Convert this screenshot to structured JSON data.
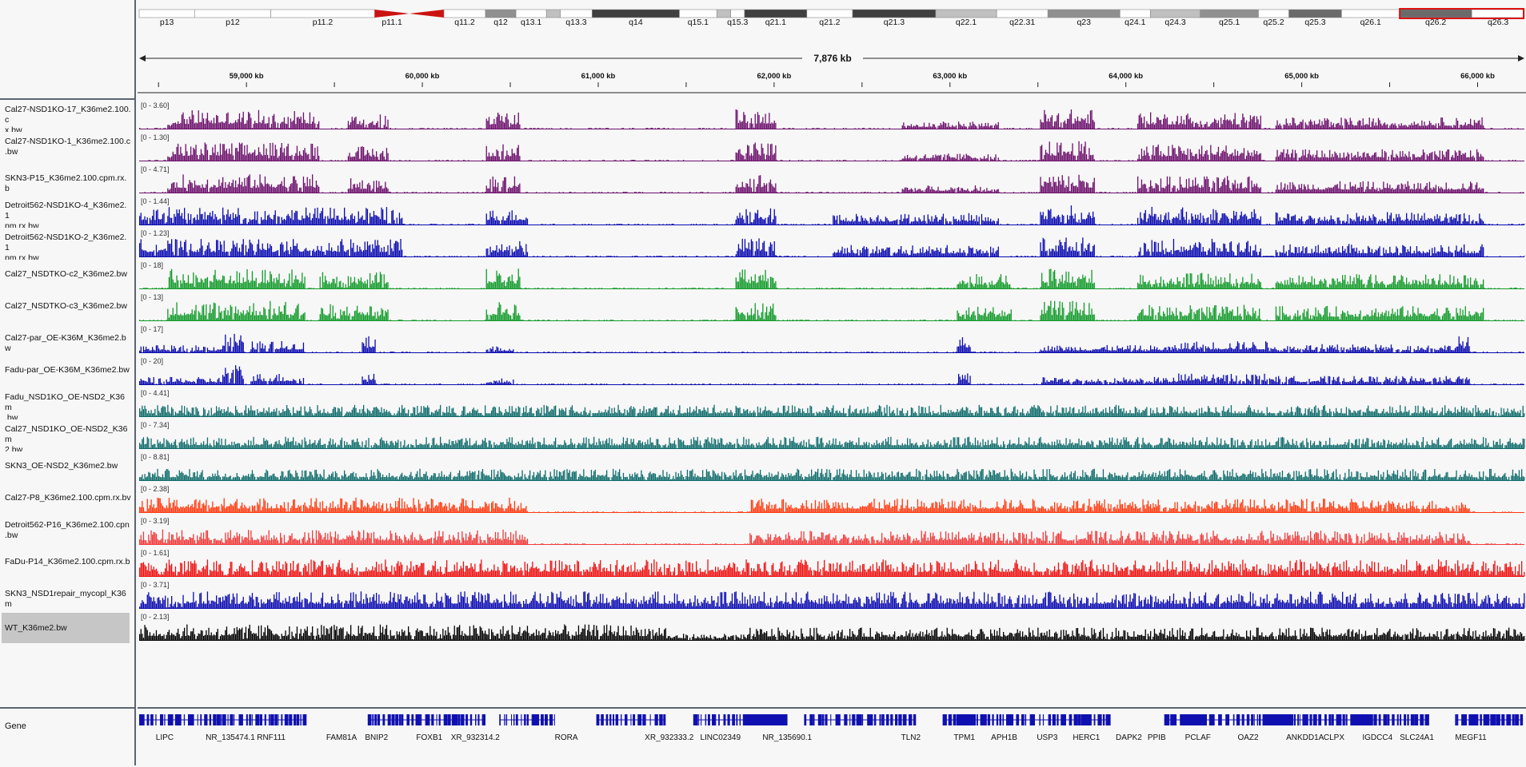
{
  "ideogram": {
    "bands": [
      {
        "label": "p13",
        "start": 0,
        "end": 0.04,
        "stain": "gneg"
      },
      {
        "label": "p12",
        "start": 0.04,
        "end": 0.095,
        "stain": "gneg"
      },
      {
        "label": "p11.2",
        "start": 0.095,
        "end": 0.17,
        "stain": "gneg"
      },
      {
        "label": "p11.1",
        "start": 0.17,
        "end": 0.195,
        "stain": "acen-p"
      },
      {
        "label": "",
        "start": 0.195,
        "end": 0.22,
        "stain": "acen-q"
      },
      {
        "label": "q11.2",
        "start": 0.22,
        "end": 0.25,
        "stain": "gneg"
      },
      {
        "label": "q12",
        "start": 0.25,
        "end": 0.272,
        "stain": "gpos50"
      },
      {
        "label": "q13.1",
        "start": 0.272,
        "end": 0.294,
        "stain": "gneg"
      },
      {
        "label": "",
        "start": 0.294,
        "end": 0.304,
        "stain": "gpos25"
      },
      {
        "label": "q13.3",
        "start": 0.304,
        "end": 0.327,
        "stain": "gneg"
      },
      {
        "label": "q14",
        "start": 0.327,
        "end": 0.39,
        "stain": "gpos100"
      },
      {
        "label": "q15.1",
        "start": 0.39,
        "end": 0.417,
        "stain": "gneg"
      },
      {
        "label": "",
        "start": 0.417,
        "end": 0.427,
        "stain": "gpos25"
      },
      {
        "label": "q15.3",
        "start": 0.427,
        "end": 0.437,
        "stain": "gneg"
      },
      {
        "label": "q21.1",
        "start": 0.437,
        "end": 0.482,
        "stain": "gpos100"
      },
      {
        "label": "q21.2",
        "start": 0.482,
        "end": 0.515,
        "stain": "gneg"
      },
      {
        "label": "q21.3",
        "start": 0.515,
        "end": 0.575,
        "stain": "gpos100"
      },
      {
        "label": "q22.1",
        "start": 0.575,
        "end": 0.619,
        "stain": "gpos25"
      },
      {
        "label": "q22.31",
        "start": 0.619,
        "end": 0.656,
        "stain": "gneg"
      },
      {
        "label": "q23",
        "start": 0.656,
        "end": 0.708,
        "stain": "gpos50"
      },
      {
        "label": "q24.1",
        "start": 0.708,
        "end": 0.73,
        "stain": "gneg"
      },
      {
        "label": "q24.3",
        "start": 0.73,
        "end": 0.766,
        "stain": "gpos25"
      },
      {
        "label": "q25.1",
        "start": 0.766,
        "end": 0.808,
        "stain": "gpos50"
      },
      {
        "label": "q25.2",
        "start": 0.808,
        "end": 0.83,
        "stain": "gneg"
      },
      {
        "label": "q25.3",
        "start": 0.83,
        "end": 0.868,
        "stain": "gpos75"
      },
      {
        "label": "q26.1",
        "start": 0.868,
        "end": 0.91,
        "stain": "gneg"
      },
      {
        "label": "q26.2",
        "start": 0.91,
        "end": 0.962,
        "stain": "gpos75"
      },
      {
        "label": "q26.3",
        "start": 0.962,
        "end": 1.0,
        "stain": "gneg"
      }
    ],
    "stain_colors": {
      "gneg": "#ffffff",
      "gpos25": "#c0c0c0",
      "gpos50": "#909090",
      "gpos75": "#6a6a6a",
      "gpos100": "#404040",
      "acen-p": "#cc1111",
      "acen-q": "#cc1111"
    },
    "highlight": {
      "start": 0.91,
      "end": 1.0,
      "color": "#dd1111"
    }
  },
  "ruler": {
    "span_label": "7,876 kb",
    "ticks": [
      "59,000 kb",
      "60,000 kb",
      "61,000 kb",
      "62,000 kb",
      "63,000 kb",
      "64,000 kb",
      "65,000 kb",
      "66,000 kb"
    ],
    "tick_values": [
      59000,
      60000,
      61000,
      62000,
      63000,
      64000,
      65000,
      66000
    ],
    "view_start_kb": 58390,
    "view_end_kb": 66266
  },
  "tracks": [
    {
      "name": "Cal27-NSD1KO-17_K36me2.100.cpm.rx.bw",
      "name_lines": [
        "Cal27-NSD1KO-17_K36me2.100.c",
        "x.bw"
      ],
      "range": "[0 - 3.60]",
      "color": "#6b0f6b",
      "profile": "nsd1ko"
    },
    {
      "name": "Cal27-NSD1KO-1_K36me2.100.cpm.rx.bw",
      "name_lines": [
        "Cal27-NSD1KO-1_K36me2.100.c",
        ".bw"
      ],
      "range": "[0 - 1.30]",
      "color": "#6b0f6b",
      "profile": "nsd1ko"
    },
    {
      "name": "SKN3-P15_K36me2.100.cpm.rx.bw",
      "name_lines": [
        "SKN3-P15_K36me2.100.cpm.rx.b"
      ],
      "range": "[0 - 4.71]",
      "color": "#6b0f6b",
      "profile": "nsd1ko"
    },
    {
      "name": "Detroit562-NSD1KO-4_K36me2.100.cpm.rx.bw",
      "name_lines": [
        "Detroit562-NSD1KO-4_K36me2.1",
        "pm.rx.bw"
      ],
      "range": "[0 - 1.44]",
      "color": "#0a0ab0",
      "profile": "detroit"
    },
    {
      "name": "Detroit562-NSD1KO-2_K36me2.100.cpm.rx.bw",
      "name_lines": [
        "Detroit562-NSD1KO-2_K36me2.1",
        "pm.rx.bw"
      ],
      "range": "[0 - 1.23]",
      "color": "#0a0ab0",
      "profile": "detroit"
    },
    {
      "name": "Cal27_NSDTKO-c2_K36me2.bw",
      "name_lines": [
        "Cal27_NSDTKO-c2_K36me2.bw"
      ],
      "range": "[0 - 18]",
      "color": "#129a2a",
      "profile": "tko"
    },
    {
      "name": "Cal27_NSDTKO-c3_K36me2.bw",
      "name_lines": [
        "Cal27_NSDTKO-c3_K36me2.bw"
      ],
      "range": "[0 - 13]",
      "color": "#129a2a",
      "profile": "tko"
    },
    {
      "name": "Cal27-par_OE-K36M_K36me2.bw",
      "name_lines": [
        "Cal27-par_OE-K36M_K36me2.bw"
      ],
      "range": "[0 - 17]",
      "color": "#0a0ab0",
      "profile": "k36m"
    },
    {
      "name": "Fadu-par_OE-K36M_K36me2.bw",
      "name_lines": [
        "Fadu-par_OE-K36M_K36me2.bw"
      ],
      "range": "[0 - 20]",
      "color": "#0a0ab0",
      "profile": "k36m"
    },
    {
      "name": "Fadu_NSD1KO_OE-NSD2_K36me2.bw",
      "name_lines": [
        "Fadu_NSD1KO_OE-NSD2_K36m",
        ".bw"
      ],
      "range": "[0 - 4.41]",
      "color": "#0f6b6b",
      "profile": "broad"
    },
    {
      "name": "Cal27_NSD1KO_OE-NSD2_K36me2.bw",
      "name_lines": [
        "Cal27_NSD1KO_OE-NSD2_K36m",
        "2.bw"
      ],
      "range": "[0 - 7.34]",
      "color": "#0f6b6b",
      "profile": "broad"
    },
    {
      "name": "SKN3_OE-NSD2_K36me2.bw",
      "name_lines": [
        "SKN3_OE-NSD2_K36me2.bw"
      ],
      "range": "[0 - 8.81]",
      "color": "#0f6b6b",
      "profile": "broad"
    },
    {
      "name": "Cal27-P8_K36me2.100.cpm.rx.bw",
      "name_lines": [
        "Cal27-P8_K36me2.100.cpm.rx.bv"
      ],
      "range": "[0 - 2.38]",
      "color": "#ff3a10",
      "profile": "parental"
    },
    {
      "name": "Detroit562-P16_K36me2.100.cpm.rx.bw",
      "name_lines": [
        "Detroit562-P16_K36me2.100.cpn",
        ".bw"
      ],
      "range": "[0 - 3.19]",
      "color": "#f03a3a",
      "profile": "parental"
    },
    {
      "name": "FaDu-P14_K36me2.100.cpm.rx.bw",
      "name_lines": [
        "FaDu-P14_K36me2.100.cpm.rx.b"
      ],
      "range": "[0 - 1.61]",
      "color": "#ee1010",
      "profile": "full"
    },
    {
      "name": "SKN3_NSD1repair_mycopl_K36me2.bw",
      "name_lines": [
        "SKN3_NSD1repair_mycopl_K36m"
      ],
      "range": "[0 - 3.71]",
      "color": "#0a0ab0",
      "profile": "full"
    },
    {
      "name": "WT_K36me2.bw",
      "name_lines": [
        "WT_K36me2.bw"
      ],
      "range": "[0 - 2.13]",
      "color": "#000000",
      "profile": "wt",
      "selected": true
    }
  ],
  "gene_track": {
    "label": "Gene",
    "genes": [
      "LIPC",
      "NR_135474.1",
      "RNF111",
      "FAM81A",
      "BNIP2",
      "FOXB1",
      "XR_932314.2",
      "RORA",
      "XR_932333.2",
      "LINC02349",
      "NR_135690.1",
      "TLN2",
      "TPM1",
      "APH1B",
      "USP3",
      "HERC1",
      "DAPK2",
      "PPIB",
      "PCLAF",
      "OAZ2",
      "ANKDD1A",
      "CLPX",
      "IGDCC4",
      "SLC24A1",
      "MEGF11"
    ],
    "color": "#1010b0"
  }
}
